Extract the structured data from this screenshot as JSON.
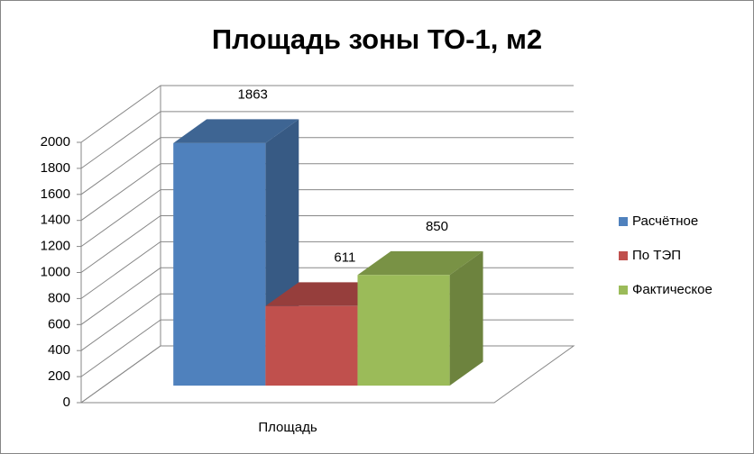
{
  "chart_data": {
    "type": "bar3d",
    "title": "Площадь зоны ТО-1, м2",
    "categories": [
      "Площадь"
    ],
    "series": [
      {
        "name": "Расчётное",
        "color": "#4f81bd",
        "values": [
          1863
        ]
      },
      {
        "name": "По ТЭП",
        "color": "#c0504d",
        "values": [
          611
        ]
      },
      {
        "name": "Фактическое",
        "color": "#9bbb59",
        "values": [
          850
        ]
      }
    ],
    "ylim": [
      0,
      2000
    ],
    "yticks": [
      0,
      200,
      400,
      600,
      800,
      1000,
      1200,
      1400,
      1600,
      1800,
      2000
    ],
    "grid": true,
    "legend": "right"
  }
}
